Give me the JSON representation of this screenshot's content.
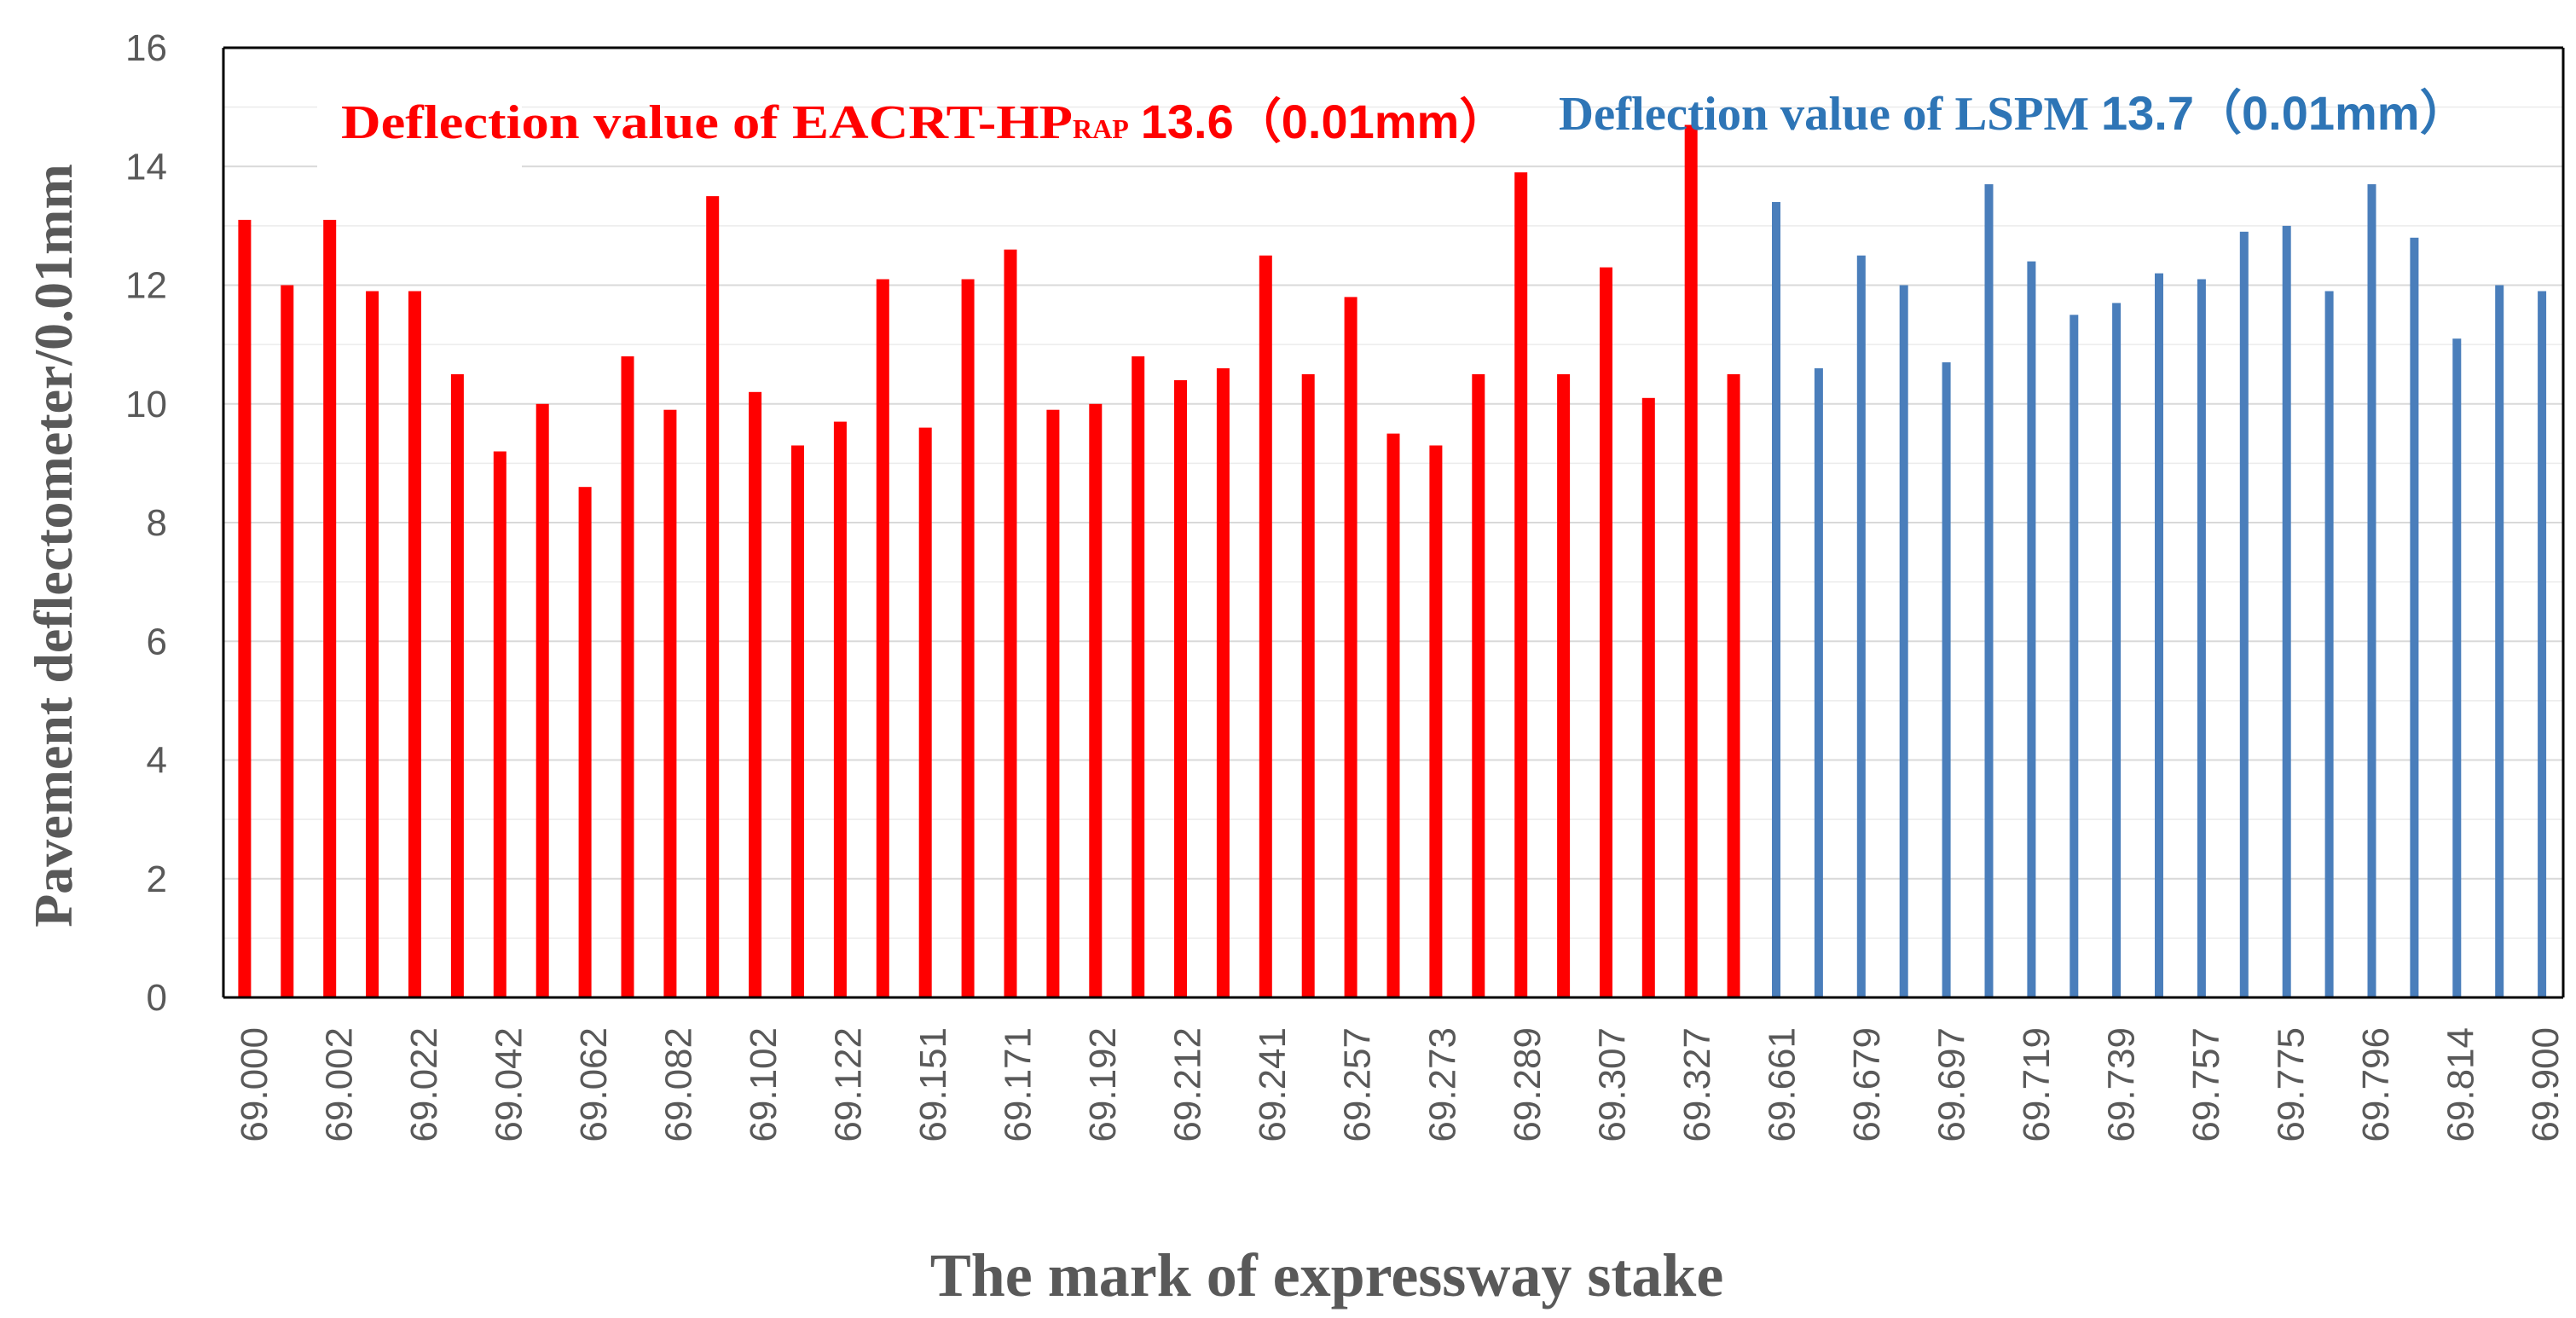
{
  "chart_data": {
    "type": "bar",
    "title": "",
    "xlabel": "The mark of expressway stake",
    "ylabel": "Pavement deflectometer/0.01mm",
    "ylim": [
      0,
      16
    ],
    "yticks": [
      "0",
      "2",
      "4",
      "6",
      "8",
      "10",
      "12",
      "14",
      "16"
    ],
    "grid": true,
    "tick_labels": [
      "69.000",
      "69.002",
      "69.022",
      "69.042",
      "69.062",
      "69.082",
      "69.102",
      "69.122",
      "69.151",
      "69.171",
      "69.192",
      "69.212",
      "69.241",
      "69.257",
      "69.273",
      "69.289",
      "69.307",
      "69.327",
      "69.661",
      "69.679",
      "69.697",
      "69.719",
      "69.739",
      "69.757",
      "69.775",
      "69.796",
      "69.814",
      "69.900"
    ],
    "series": [
      {
        "name": "EACRT-HPRAP",
        "color": "#ff0000",
        "values": [
          13.1,
          12.0,
          13.1,
          11.9,
          11.9,
          10.5,
          9.2,
          10.0,
          8.6,
          10.8,
          9.9,
          13.5,
          10.2,
          9.3,
          9.7,
          12.1,
          9.6,
          12.1,
          12.6,
          9.9,
          10.0,
          10.8,
          10.4,
          10.6,
          12.5,
          10.5,
          11.8,
          9.5,
          9.3,
          10.5,
          13.9,
          10.5,
          12.3,
          10.1,
          14.7,
          10.5
        ]
      },
      {
        "name": "LSPM",
        "color": "#4a7ebb",
        "values": [
          13.4,
          10.6,
          12.5,
          12.0,
          10.7,
          13.7,
          12.4,
          11.5,
          11.7,
          12.2,
          12.1,
          12.9,
          13.0,
          11.9,
          13.7,
          12.8,
          11.1,
          12.0,
          11.9
        ]
      }
    ],
    "annotations": [
      {
        "series": "EACRT-HPRAP",
        "color": "#ff0000",
        "prefix": "Deflection value of EACRT-HP",
        "subscript": "RAP",
        "value": "13.6",
        "unit": "（0.01mm）"
      },
      {
        "series": "LSPM",
        "color": "#2e75b6",
        "prefix": "Deflection value of LSPM",
        "value": "13.7",
        "unit": "（0.01mm）"
      }
    ]
  }
}
